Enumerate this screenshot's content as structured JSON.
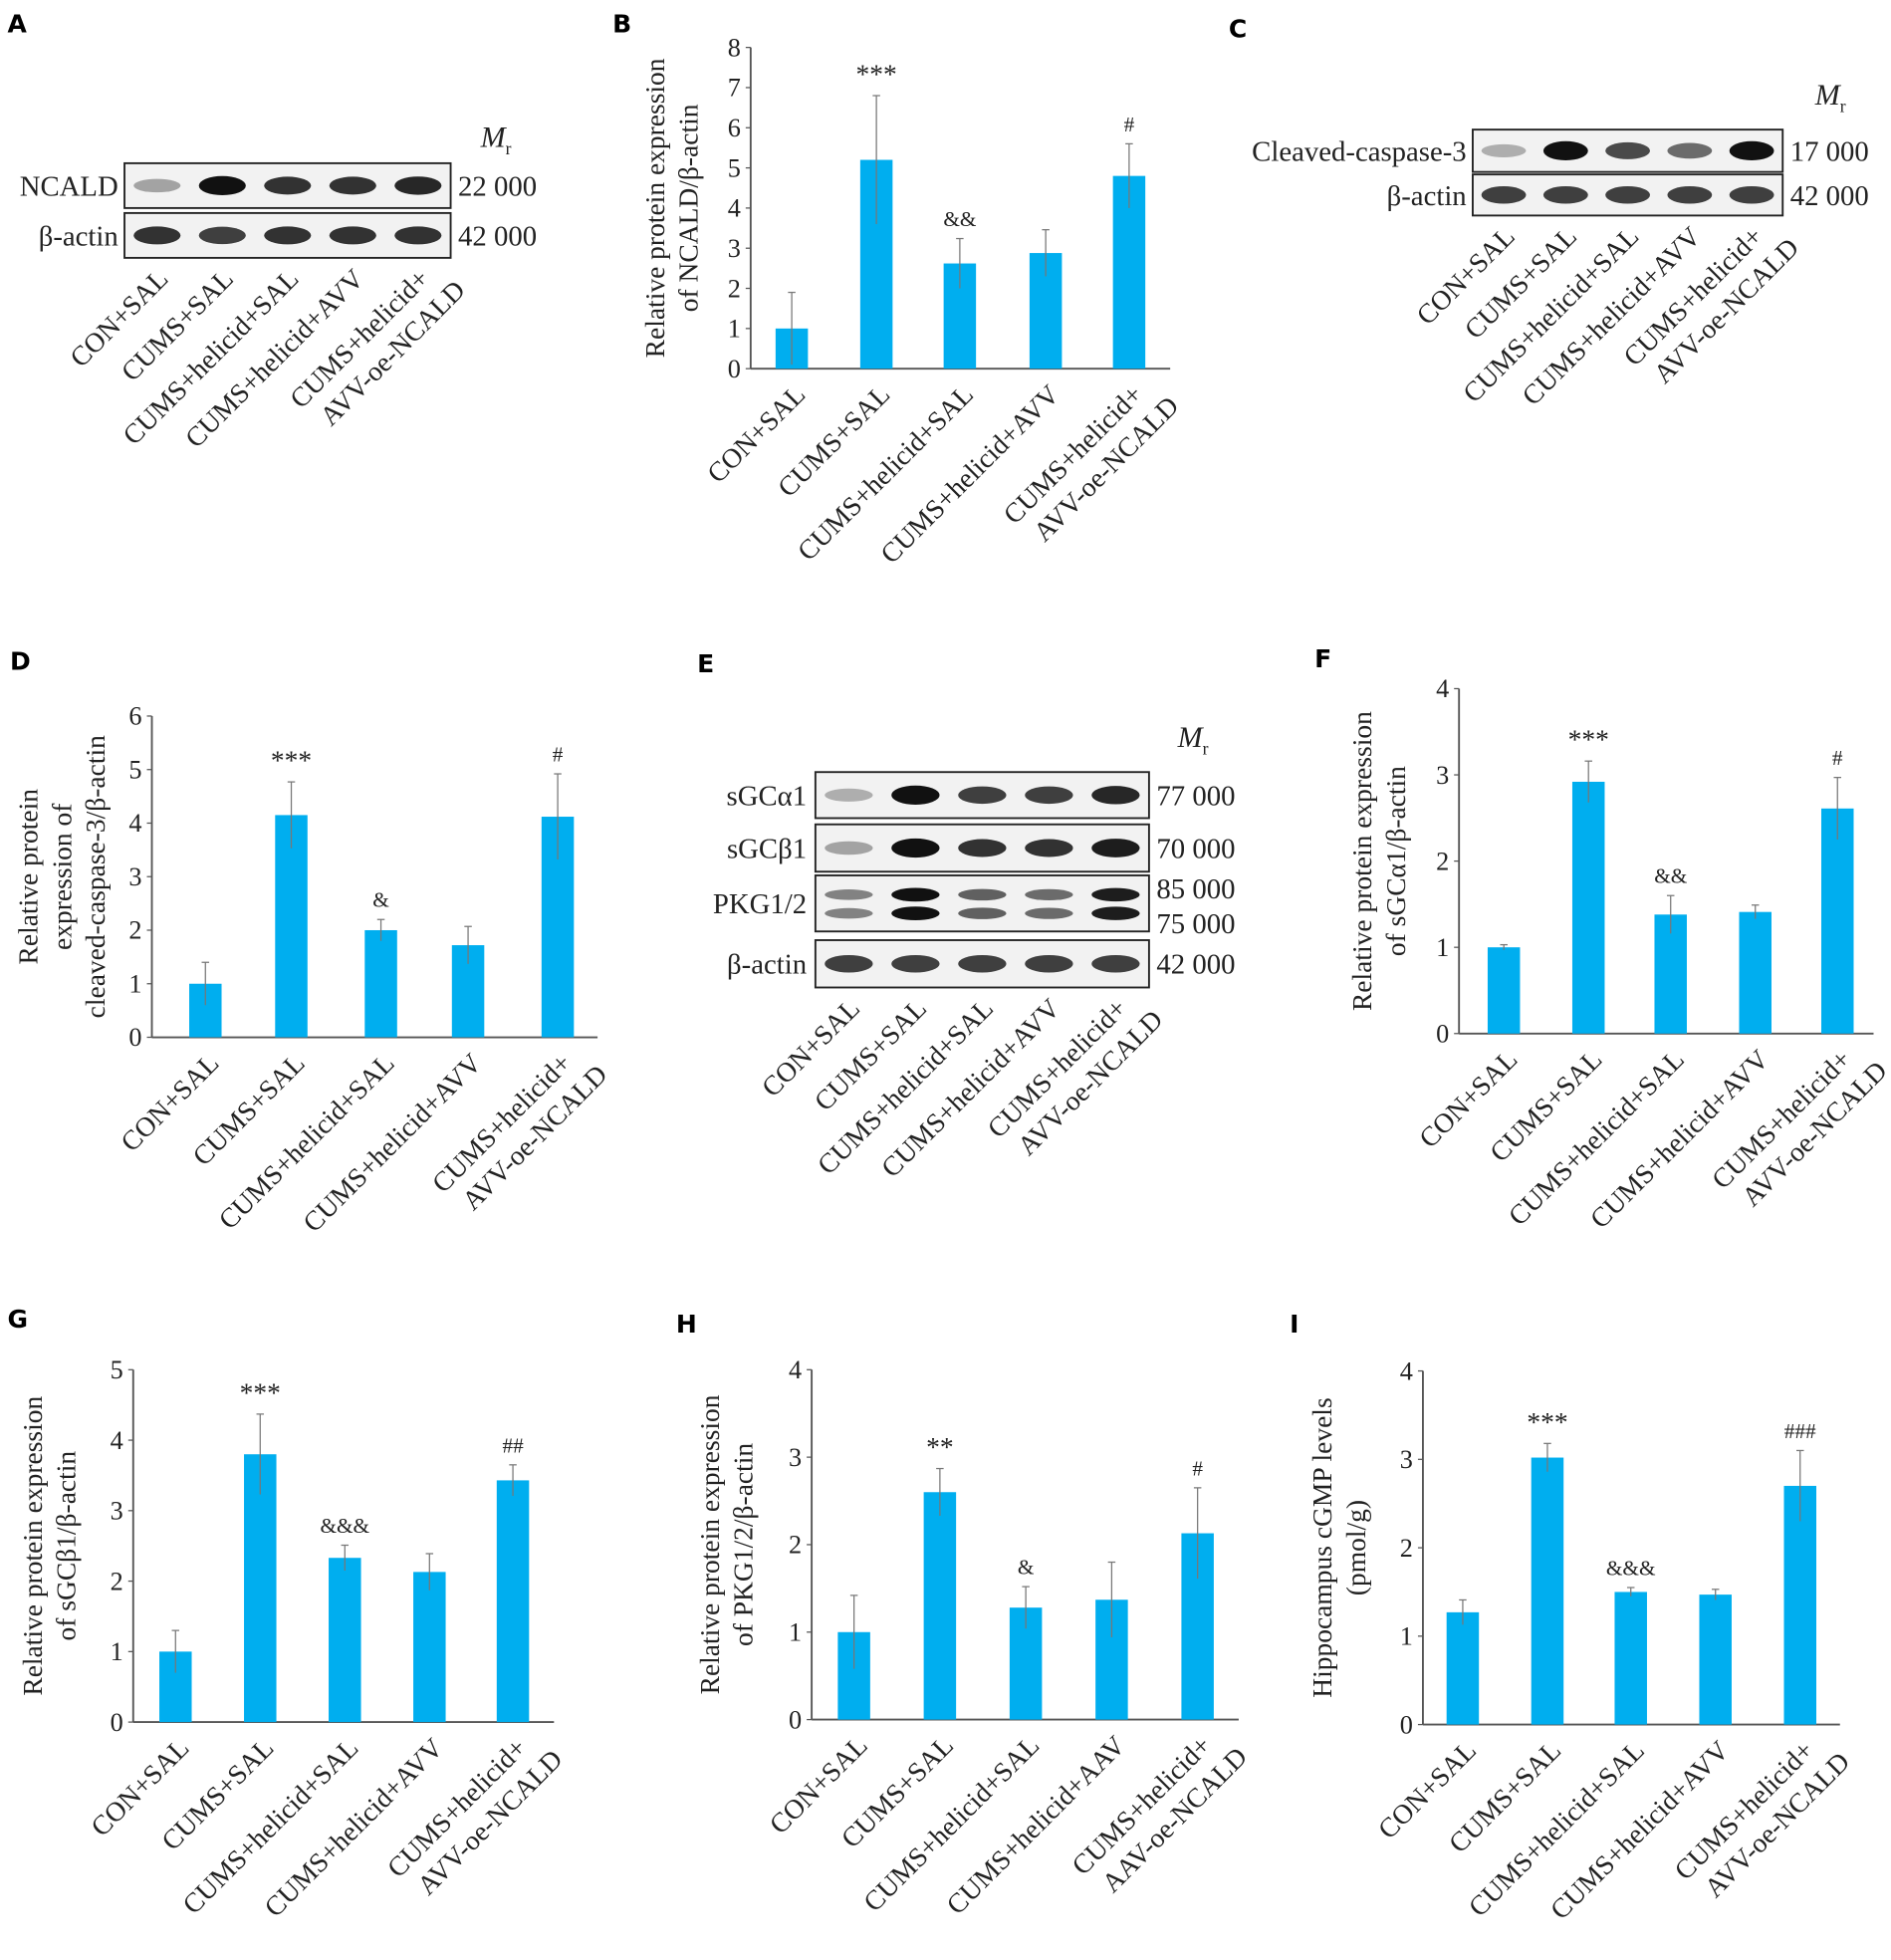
{
  "panels": {
    "A": "A",
    "B": "B",
    "C": "C",
    "D": "D",
    "E": "E",
    "F": "F",
    "G": "G",
    "H": "H",
    "I": "I"
  },
  "blots": [
    {
      "panel": "A",
      "mr_label": "M",
      "mr_sub": "r",
      "rows": [
        {
          "label": "NCALD",
          "mr": "22 000"
        },
        {
          "label": "β-actin",
          "mr": "42 000"
        }
      ],
      "lanes": [
        "CON+SAL",
        "CUMS+SAL",
        "CUMS+helicid+SAL",
        "CUMS+helicid+AVV",
        [
          "CUMS+helicid+",
          "AVV-oe-NCALD"
        ]
      ]
    },
    {
      "panel": "C",
      "mr_label": "M",
      "mr_sub": "r",
      "rows": [
        {
          "label": "Cleaved-caspase-3",
          "mr": "17 000"
        },
        {
          "label": "β-actin",
          "mr": "42 000"
        }
      ],
      "lanes": [
        "CON+SAL",
        "CUMS+SAL",
        "CUMS+helicid+SAL",
        "CUMS+helicid+AVV",
        [
          "CUMS+helicid+",
          "AVV-oe-NCALD"
        ]
      ]
    },
    {
      "panel": "E",
      "mr_label": "M",
      "mr_sub": "r",
      "rows": [
        {
          "label": "sGCα1",
          "mr": "77 000"
        },
        {
          "label": "sGCβ1",
          "mr": "70 000"
        },
        {
          "label": "PKG1/2",
          "mr": "85 000",
          "mr2": "75 000"
        },
        {
          "label": "β-actin",
          "mr": "42 000"
        }
      ],
      "lanes": [
        "CON+SAL",
        "CUMS+SAL",
        "CUMS+helicid+SAL",
        "CUMS+helicid+AVV",
        [
          "CUMS+helicid+",
          "AVV-oe-NCALD"
        ]
      ]
    }
  ],
  "colors": {
    "bar": "#00aeef",
    "axis": "#555555",
    "error": "#777777"
  },
  "chart_data": [
    {
      "panel": "B",
      "type": "bar",
      "ylabel": [
        "Relative protein expression",
        "of NCALD/β-actin"
      ],
      "ylim": [
        0,
        8
      ],
      "yticks": [
        0,
        1,
        2,
        3,
        4,
        5,
        6,
        7,
        8
      ],
      "categories": [
        "CON+SAL",
        "CUMS+SAL",
        "CUMS+helicid+SAL",
        "CUMS+helicid+AVV",
        [
          "CUMS+helicid+",
          "AVV-oe-NCALD"
        ]
      ],
      "values": [
        1.0,
        5.2,
        2.62,
        2.88,
        4.8
      ],
      "errors": [
        0.9,
        1.6,
        0.62,
        0.58,
        0.8
      ],
      "annotations": [
        "",
        "***",
        "&&",
        "",
        "#"
      ]
    },
    {
      "panel": "D",
      "type": "bar",
      "ylabel": [
        "Relative protein",
        "expression of",
        "cleaved-caspase-3/β-actin"
      ],
      "ylim": [
        0,
        6
      ],
      "yticks": [
        0,
        1,
        2,
        3,
        4,
        5,
        6
      ],
      "categories": [
        "CON+SAL",
        "CUMS+SAL",
        "CUMS+helicid+SAL",
        "CUMS+helicid+AVV",
        [
          "CUMS+helicid+",
          "AVV-oe-NCALD"
        ]
      ],
      "values": [
        1.0,
        4.15,
        2.0,
        1.72,
        4.12
      ],
      "errors": [
        0.4,
        0.62,
        0.2,
        0.35,
        0.8
      ],
      "annotations": [
        "",
        "***",
        "&",
        "",
        "#"
      ]
    },
    {
      "panel": "F",
      "type": "bar",
      "ylabel": [
        "Relative protein expression",
        "of sGCα1/β-actin"
      ],
      "ylim": [
        0,
        4
      ],
      "yticks": [
        0,
        1,
        2,
        3,
        4
      ],
      "categories": [
        "CON+SAL",
        "CUMS+SAL",
        "CUMS+helicid+SAL",
        "CUMS+helicid+AVV",
        [
          "CUMS+helicid+",
          "AVV-oe-NCALD"
        ]
      ],
      "values": [
        1.0,
        2.92,
        1.38,
        1.41,
        2.61
      ],
      "errors": [
        0.03,
        0.24,
        0.22,
        0.08,
        0.36
      ],
      "annotations": [
        "",
        "***",
        "&&",
        "",
        "#"
      ]
    },
    {
      "panel": "G",
      "type": "bar",
      "ylabel": [
        "Relative protein expression",
        "of sGCβ1/β-actin"
      ],
      "ylim": [
        0,
        5
      ],
      "yticks": [
        0,
        1,
        2,
        3,
        4,
        5
      ],
      "categories": [
        "CON+SAL",
        "CUMS+SAL",
        "CUMS+helicid+SAL",
        "CUMS+helicid+AVV",
        [
          "CUMS+helicid+",
          "AVV-oe-NCALD"
        ]
      ],
      "values": [
        1.0,
        3.8,
        2.33,
        2.13,
        3.43
      ],
      "errors": [
        0.3,
        0.57,
        0.18,
        0.26,
        0.22
      ],
      "annotations": [
        "",
        "***",
        "&&&",
        "",
        "##"
      ]
    },
    {
      "panel": "H",
      "type": "bar",
      "ylabel": [
        "Relative protein expression",
        "of PKG1/2/β-actin"
      ],
      "ylim": [
        0,
        4
      ],
      "yticks": [
        0,
        1,
        2,
        3,
        4
      ],
      "categories": [
        "CON+SAL",
        "CUMS+SAL",
        "CUMS+helicid+SAL",
        "CUMS+helicid+AAV",
        [
          "CUMS+helicid+",
          "AAV-oe-NCALD"
        ]
      ],
      "values": [
        1.0,
        2.6,
        1.28,
        1.37,
        2.13
      ],
      "errors": [
        0.42,
        0.27,
        0.24,
        0.43,
        0.52
      ],
      "annotations": [
        "",
        "**",
        "&",
        "",
        "#"
      ]
    },
    {
      "panel": "I",
      "type": "bar",
      "ylabel": [
        "Hippocampus cGMP levels",
        "(pmol/g)"
      ],
      "ylim": [
        0,
        4
      ],
      "yticks": [
        0,
        1,
        2,
        3,
        4
      ],
      "categories": [
        "CON+SAL",
        "CUMS+SAL",
        "CUMS+helicid+SAL",
        "CUMS+helicid+AVV",
        [
          "CUMS+helicid+",
          "AVV-oe-NCALD"
        ]
      ],
      "values": [
        1.27,
        3.02,
        1.5,
        1.47,
        2.7
      ],
      "errors": [
        0.14,
        0.16,
        0.05,
        0.06,
        0.4
      ],
      "annotations": [
        "",
        "***",
        "&&&",
        "",
        "###"
      ]
    }
  ]
}
